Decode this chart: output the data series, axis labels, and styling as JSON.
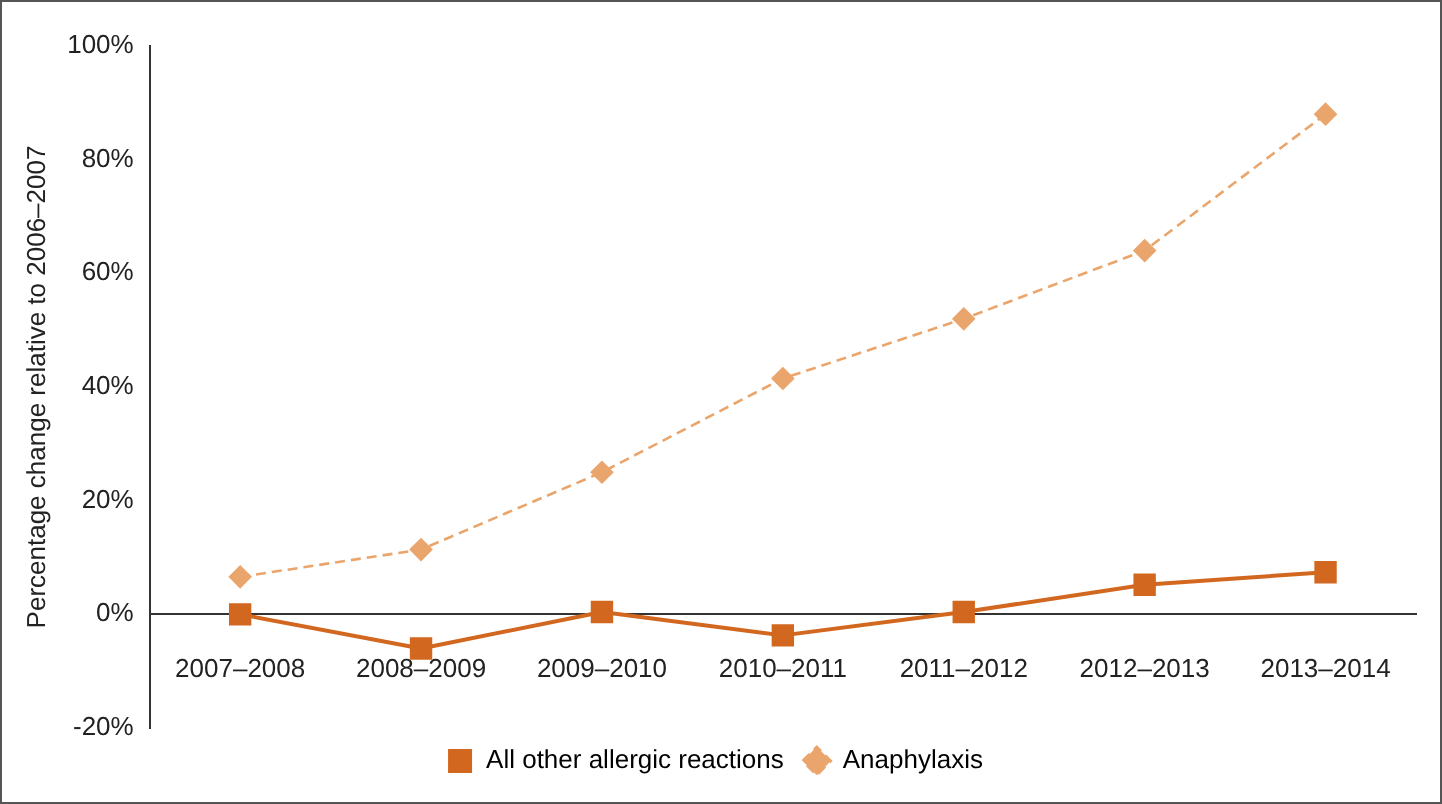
{
  "chart_data": {
    "type": "line",
    "ylabel": "Percentage change relative to 2006–2007",
    "categories": [
      "2007–2008",
      "2008–2009",
      "2009–2010",
      "2010–2011",
      "2011–2012",
      "2012–2013",
      "2013–2014"
    ],
    "series": [
      {
        "name": "All other allergic reactions",
        "color": "#d2671f",
        "marker": "square",
        "line_style": "solid",
        "values": [
          0,
          -6,
          0.4,
          -3.7,
          0.4,
          5.2,
          7.4
        ]
      },
      {
        "name": "Anaphylaxis",
        "color": "#eaa56c",
        "marker": "diamond",
        "line_style": "dashed",
        "values": [
          6.6,
          11.4,
          25,
          41.5,
          52,
          64,
          88
        ]
      }
    ],
    "ylim": [
      -20,
      100
    ],
    "yticks": [
      {
        "value": -20,
        "label": "-20%"
      },
      {
        "value": 0,
        "label": "0%"
      },
      {
        "value": 20,
        "label": "20%"
      },
      {
        "value": 40,
        "label": "40%"
      },
      {
        "value": 60,
        "label": "60%"
      },
      {
        "value": 80,
        "label": "80%"
      },
      {
        "value": 100,
        "label": "100%"
      }
    ],
    "grid": false,
    "legend": "bottom"
  }
}
